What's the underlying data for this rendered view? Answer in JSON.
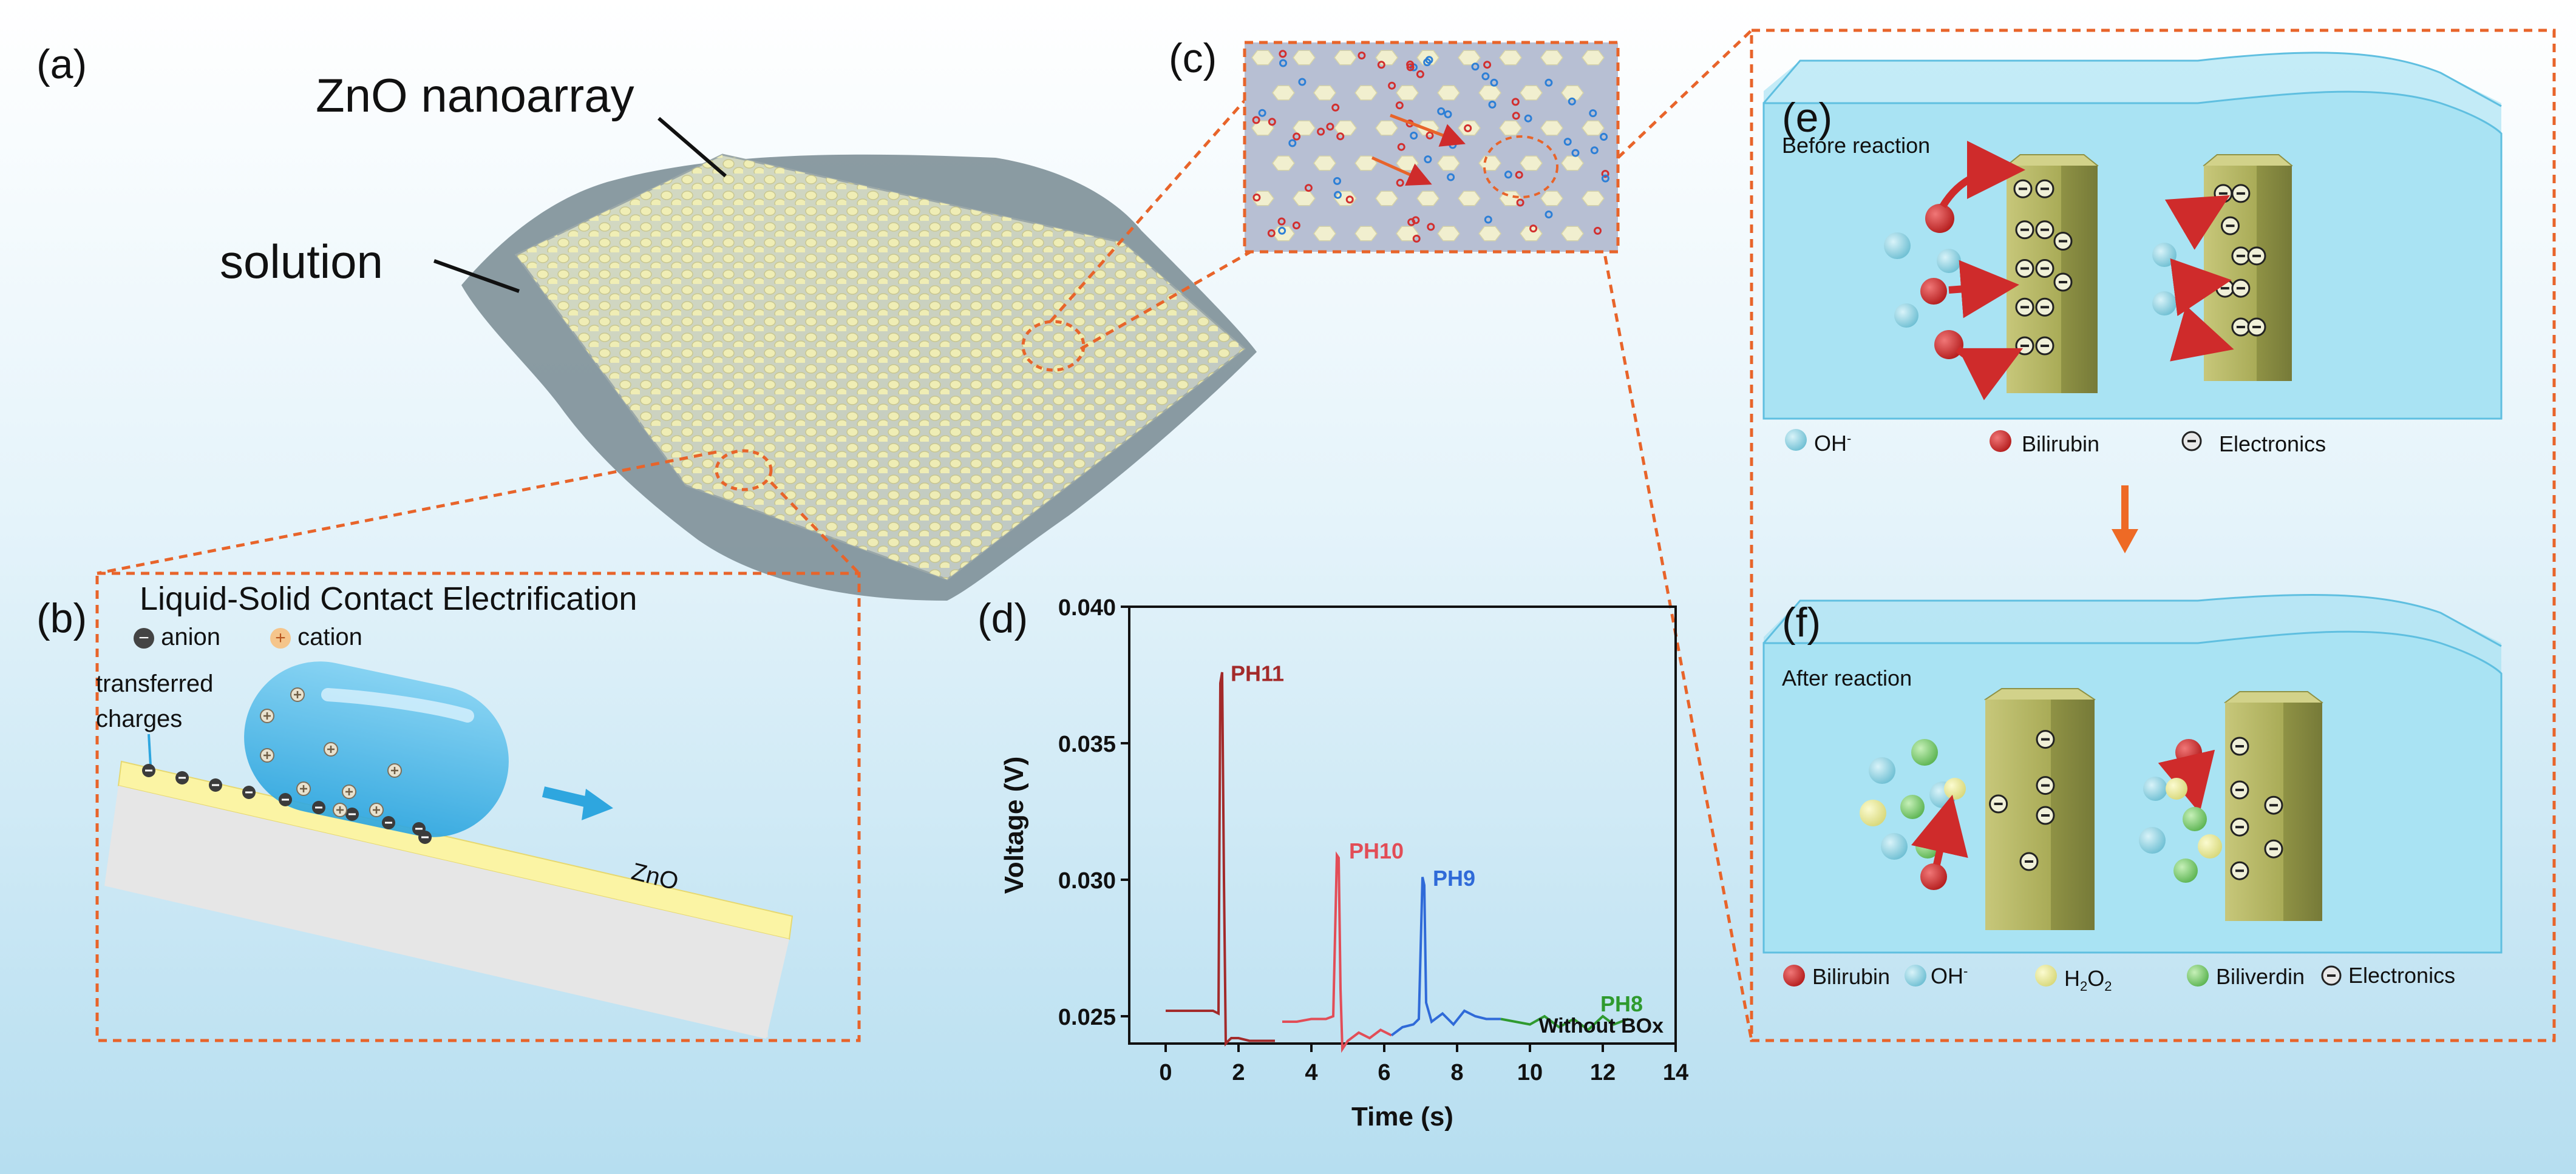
{
  "panels": {
    "a": "(a)",
    "b": "(b)",
    "c": "(c)",
    "d": "(d)",
    "e": "(e)",
    "f": "(f)"
  },
  "panel_a": {
    "array_label": "ZnO nanoarray",
    "solution_label": "solution"
  },
  "panel_b": {
    "title": "Liquid-Solid Contact Electrification",
    "anion_label": "anion",
    "cation_label": "cation",
    "transferred_line1": "transferred",
    "transferred_line2": "charges",
    "substrate_label": "ZnO"
  },
  "panel_e": {
    "stage_label": "Before reaction",
    "legend": {
      "oh": "OH",
      "oh_sup": "-",
      "bilirubin": "Bilirubin",
      "electronics": "Electronics"
    }
  },
  "panel_f": {
    "stage_label": "After reaction",
    "legend": {
      "bilirubin": "Bilirubin",
      "oh": "OH",
      "oh_sup": "-",
      "h2o2_h": "H",
      "h2o2_sub1": "2",
      "h2o2_o": "O",
      "h2o2_sub2": "2",
      "biliverdin": "Biliverdin",
      "electronics": "Electronics"
    }
  },
  "colors": {
    "background_top": "#ffffff",
    "background_bottom": "#b8dff0",
    "dash": "#e8642a",
    "water": "#a9e3f3",
    "rod": "#b7b865",
    "bilirubin": "#cf2b2b",
    "oh": "#8fd3e3",
    "h2o2": "#ecec9a",
    "biliverdin": "#7fcf74",
    "ph11": "#a32a2a",
    "ph10": "#e24d57",
    "ph9": "#2f6ad8",
    "ph8": "#2f9a2f"
  },
  "chart_data": {
    "type": "line",
    "xlabel": "Time (s)",
    "ylabel": "Voltage (V)",
    "xlim": [
      -1,
      14
    ],
    "ylim": [
      0.024,
      0.04
    ],
    "x_ticks": [
      0,
      2,
      4,
      6,
      8,
      10,
      12,
      14
    ],
    "y_ticks": [
      0.025,
      0.03,
      0.035,
      0.04
    ],
    "y_tick_labels": [
      "0.025",
      "0.030",
      "0.035",
      "0.040"
    ],
    "annotation": "Without BOx",
    "series": [
      {
        "name": "PH11",
        "color": "#a32a2a",
        "label_at": [
          1.65,
          0.0375
        ],
        "x": [
          0,
          0.5,
          1.0,
          1.3,
          1.45,
          1.5,
          1.55,
          1.6,
          1.65,
          1.72,
          1.8,
          2.0,
          2.3,
          2.7,
          3.0
        ],
        "y": [
          0.0252,
          0.0252,
          0.0252,
          0.0252,
          0.0251,
          0.0372,
          0.0376,
          0.03,
          0.024,
          0.0241,
          0.0242,
          0.0242,
          0.0241,
          0.0241,
          0.0241
        ]
      },
      {
        "name": "PH10",
        "color": "#e24d57",
        "label_at": [
          4.9,
          0.031
        ],
        "x": [
          3.2,
          3.6,
          4.0,
          4.4,
          4.6,
          4.7,
          4.75,
          4.8,
          4.85,
          5.0,
          5.3,
          5.6,
          5.9,
          6.2
        ],
        "y": [
          0.0248,
          0.0248,
          0.0249,
          0.0249,
          0.025,
          0.0309,
          0.0308,
          0.026,
          0.0238,
          0.0241,
          0.0244,
          0.0242,
          0.0245,
          0.0243
        ]
      },
      {
        "name": "PH9",
        "color": "#2f6ad8",
        "label_at": [
          7.2,
          0.03
        ],
        "x": [
          6.2,
          6.5,
          6.8,
          6.95,
          7.05,
          7.1,
          7.15,
          7.3,
          7.6,
          7.9,
          8.2,
          8.5,
          8.8,
          9.2
        ],
        "y": [
          0.0243,
          0.0246,
          0.0247,
          0.0249,
          0.0301,
          0.0298,
          0.0255,
          0.0248,
          0.0251,
          0.0247,
          0.0252,
          0.025,
          0.0249,
          0.0249
        ]
      },
      {
        "name": "PH8",
        "color": "#2f9a2f",
        "label_at": [
          11.8,
          0.0254
        ],
        "x": [
          9.2,
          9.6,
          10.0,
          10.4,
          10.8,
          11.2,
          11.6,
          12.0,
          12.3,
          12.7
        ],
        "y": [
          0.0249,
          0.0248,
          0.0247,
          0.025,
          0.0246,
          0.0249,
          0.0245,
          0.025,
          0.0247,
          0.0249
        ]
      }
    ]
  }
}
